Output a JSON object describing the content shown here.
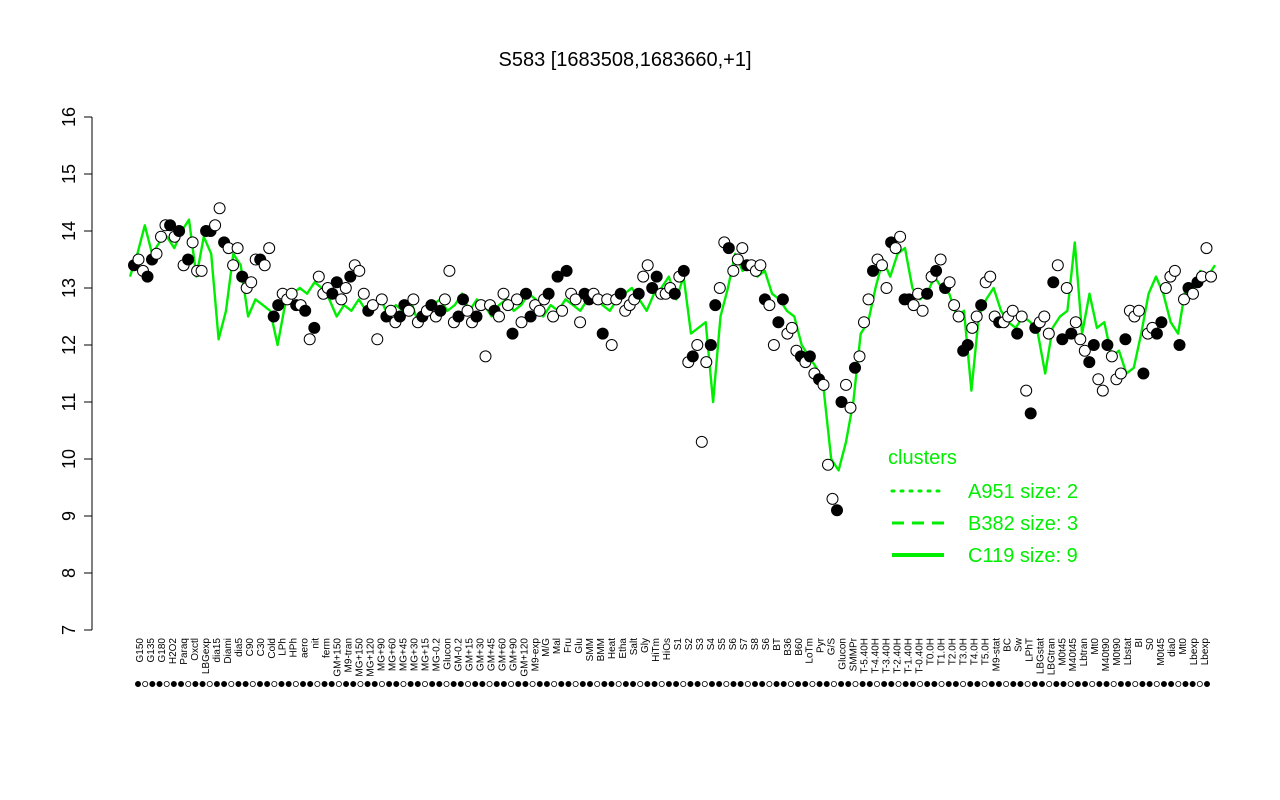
{
  "colors": {
    "line": "#00ee00",
    "axis": "#000000",
    "point_fill": "#ffffff",
    "point_fill_dark": "#000000"
  },
  "chart_data": {
    "type": "line",
    "title": "S583 [1683508,1683660,+1]",
    "xlabel": "",
    "ylabel": "",
    "ylim": [
      7,
      16
    ],
    "yticks": [
      7,
      8,
      9,
      10,
      11,
      12,
      13,
      14,
      15,
      16
    ],
    "grid": false,
    "legend": {
      "placement": "right",
      "title": "clusters",
      "entries": [
        {
          "label": "A951 size: 2",
          "style": "dotted"
        },
        {
          "label": "B382 size: 3",
          "style": "dashed"
        },
        {
          "label": "C119 size: 9",
          "style": "solid"
        }
      ]
    },
    "x_tick_labels": [
      "G150",
      "G135",
      "G180",
      "H2O2",
      "Paraq",
      "Oxctl",
      "LBGexp",
      "dia15",
      "Diami",
      "dia5",
      "C90",
      "C30",
      "Cold",
      "LPh",
      "HPh",
      "aero",
      "nit",
      "ferm",
      "GM+150",
      "M9-tran",
      "MG+150",
      "MG+120",
      "MG+90",
      "MG+60",
      "MG+45",
      "MG+30",
      "MG+15",
      "MG-0.2",
      "Glucon",
      "GM-0.2",
      "GM+15",
      "GM+30",
      "GM+45",
      "GM+60",
      "GM+90",
      "GM+120",
      "M9-exp",
      "M/G",
      "Mal",
      "Fru",
      "Glu",
      "SMM",
      "BMM",
      "Heat",
      "Etha",
      "Salt",
      "Gly",
      "HiTm",
      "HiOs",
      "S1",
      "S2",
      "S3",
      "S4",
      "S5",
      "S6",
      "S7",
      "S8",
      "S6",
      "BT",
      "B36",
      "B60",
      "LoTm",
      "Pyr",
      "G/S",
      "Glucon",
      "SMMPr",
      "T-5.40H",
      "T-4.40H",
      "T-3.40H",
      "T-2.40H",
      "T-1.40H",
      "T-0.40H",
      "T0.0H",
      "T1.0H",
      "T2.0H",
      "T3.0H",
      "T4.0H",
      "T5.0H",
      "M9-stat",
      "BC",
      "Sw",
      "LPhT",
      "LBGstat",
      "LBGtran",
      "M0t45",
      "M40t45",
      "Lbtran",
      "Mt0",
      "M40t90",
      "M0t90",
      "Lbstat",
      "BI",
      "S0",
      "M0t45",
      "dia0",
      "Mt0",
      "Lbexp",
      "Lbexp"
    ],
    "points": [
      13.4,
      13.5,
      13.3,
      13.2,
      13.5,
      13.6,
      13.9,
      14.1,
      14.1,
      13.9,
      14.0,
      13.4,
      13.5,
      13.8,
      13.3,
      13.3,
      14.0,
      14.0,
      14.1,
      14.4,
      13.8,
      13.7,
      13.4,
      13.7,
      13.2,
      13.0,
      13.1,
      13.5,
      13.5,
      13.4,
      13.7,
      12.5,
      12.7,
      12.9,
      12.8,
      12.9,
      12.7,
      12.7,
      12.6,
      12.1,
      12.3,
      13.2,
      12.9,
      13.0,
      12.9,
      13.1,
      12.8,
      13.0,
      13.2,
      13.4,
      13.3,
      12.9,
      12.6,
      12.7,
      12.1,
      12.8,
      12.5,
      12.6,
      12.4,
      12.5,
      12.7,
      12.6,
      12.8,
      12.4,
      12.5,
      12.6,
      12.7,
      12.5,
      12.6,
      12.8,
      13.3,
      12.4,
      12.5,
      12.8,
      12.6,
      12.4,
      12.5,
      12.7,
      11.8,
      12.7,
      12.6,
      12.5,
      12.9,
      12.7,
      12.2,
      12.8,
      12.4,
      12.9,
      12.5,
      12.7,
      12.6,
      12.8,
      12.9,
      12.5,
      13.2,
      12.6,
      13.3,
      12.9,
      12.8,
      12.4,
      12.9,
      12.8,
      12.9,
      12.8,
      12.2,
      12.8,
      12.0,
      12.8,
      12.9,
      12.6,
      12.7,
      12.8,
      12.9,
      13.2,
      13.4,
      13.0,
      13.2,
      12.9,
      12.9,
      13.0,
      12.9,
      13.2,
      13.3,
      11.7,
      11.8,
      12.0,
      10.3,
      11.7,
      12.0,
      12.7,
      13.0,
      13.8,
      13.7,
      13.3,
      13.5,
      13.7,
      13.4,
      13.4,
      13.3,
      13.4,
      12.8,
      12.7,
      12.0,
      12.4,
      12.8,
      12.2,
      12.3,
      11.9,
      11.8,
      11.7,
      11.8,
      11.5,
      11.4,
      11.3,
      9.9,
      9.3,
      9.1,
      11.0,
      11.3,
      10.9,
      11.6,
      11.8,
      12.4,
      12.8,
      13.3,
      13.5,
      13.4,
      13.0,
      13.8,
      13.7,
      13.9,
      12.8,
      12.8,
      12.7,
      12.9,
      12.6,
      12.9,
      13.2,
      13.3,
      13.5,
      13.0,
      13.1,
      12.7,
      12.5,
      11.9,
      12.0,
      12.3,
      12.5,
      12.7,
      13.1,
      13.2,
      12.5,
      12.4,
      12.4,
      12.5,
      12.6,
      12.2,
      12.5,
      11.2,
      10.8,
      12.3,
      12.4,
      12.5,
      12.2,
      13.1,
      13.4,
      12.1,
      13.0,
      12.2,
      12.4,
      12.1,
      11.9,
      11.7,
      12.0,
      11.4,
      11.2,
      12.0,
      11.8,
      11.4,
      11.5,
      12.1,
      12.6,
      12.5,
      12.6,
      11.5,
      12.2,
      12.3,
      12.2,
      12.4,
      13.0,
      13.2,
      13.3,
      12.0,
      12.8,
      13.0,
      12.9,
      13.1,
      13.2,
      13.7,
      13.2
    ],
    "series": [
      {
        "values": [
          13.2,
          13.6,
          14.1,
          13.6,
          13.8,
          13.9,
          13.7,
          14.0,
          14.2,
          13.2,
          13.9,
          13.6,
          12.1,
          12.6,
          13.6,
          13.4,
          12.5,
          12.8,
          12.7,
          12.6,
          12.0,
          12.7,
          12.9,
          13.0,
          12.9,
          13.1,
          13.0,
          12.8,
          12.5,
          12.7,
          12.6,
          12.8,
          12.6,
          12.7,
          12.8,
          12.5,
          12.7,
          12.6,
          12.8,
          12.4,
          12.6,
          12.7,
          12.8,
          12.6,
          12.7,
          12.9,
          12.6,
          12.8,
          12.7,
          12.5,
          12.7,
          12.8,
          12.6,
          12.7,
          12.9,
          12.8,
          12.5,
          12.7,
          12.6,
          12.8,
          12.7,
          12.6,
          12.8,
          12.9,
          12.7,
          12.6,
          12.8,
          12.9,
          13.0,
          12.8,
          12.6,
          12.9,
          13.0,
          13.2,
          12.8,
          13.2,
          12.2,
          12.3,
          12.4,
          11.0,
          12.5,
          13.0,
          13.6,
          13.3,
          13.4,
          13.2,
          13.3,
          12.9,
          12.8,
          12.6,
          12.5,
          12.0,
          11.8,
          11.6,
          11.2,
          10.0,
          9.8,
          10.3,
          11.0,
          12.2,
          12.4,
          13.0,
          13.5,
          13.2,
          13.6,
          13.7,
          13.0,
          12.8,
          12.9,
          13.2,
          13.0,
          12.9,
          12.5,
          12.6,
          11.2,
          12.5,
          12.8,
          13.0,
          12.6,
          12.4,
          12.3,
          12.5,
          12.4,
          12.2,
          11.5,
          12.3,
          12.5,
          12.6,
          13.8,
          12.2,
          12.9,
          12.3,
          12.4,
          11.8,
          11.9,
          11.5,
          11.6,
          12.2,
          12.9,
          13.2,
          12.9,
          12.4,
          12.2,
          13.0,
          12.9,
          13.3,
          13.2,
          13.4
        ]
      }
    ]
  }
}
